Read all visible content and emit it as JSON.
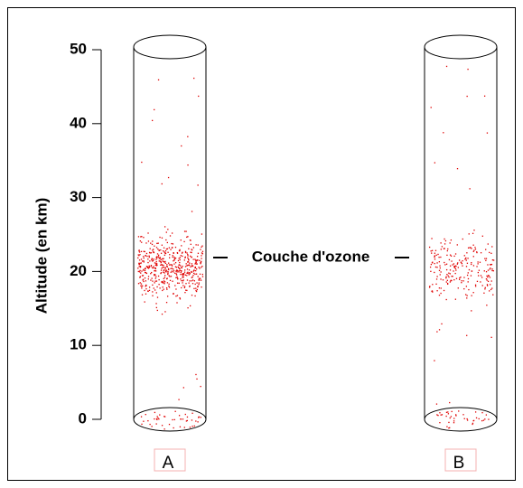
{
  "axis": {
    "label": "Altitude (en km)",
    "ylim": [
      0,
      50
    ],
    "yticks": [
      0,
      10,
      20,
      30,
      40,
      50
    ]
  },
  "ozone_label": "Couche d'ozone",
  "columns": [
    {
      "label": "A"
    },
    {
      "label": "B"
    }
  ]
}
